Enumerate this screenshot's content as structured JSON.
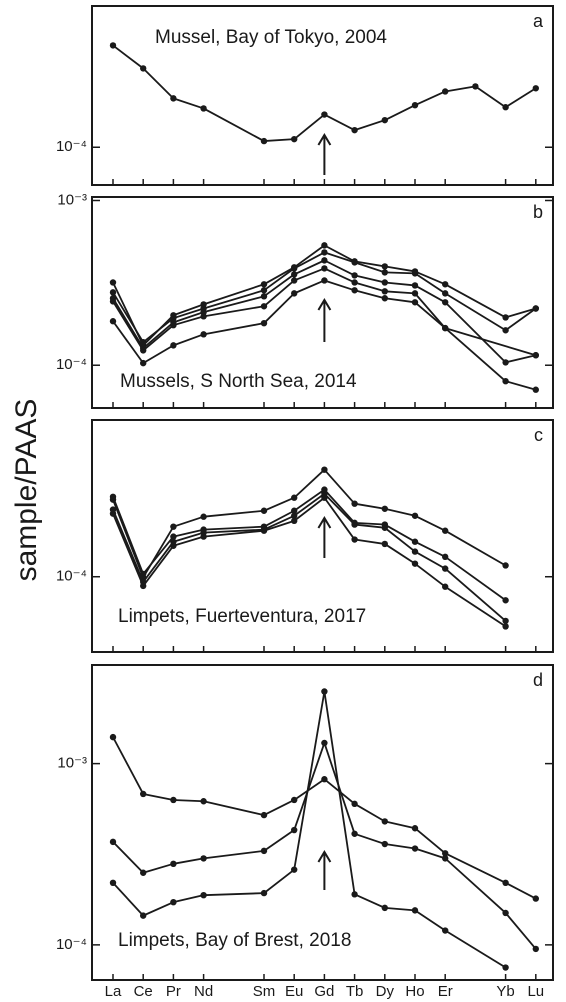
{
  "y_label": "sample/PAAS",
  "categories": [
    "La",
    "Ce",
    "Pr",
    "Nd",
    null,
    "Sm",
    "Eu",
    "Gd",
    "Tb",
    "Dy",
    "Ho",
    "Er",
    null,
    "Yb",
    "Lu"
  ],
  "chart_data": [
    {
      "type": "line",
      "label": "a",
      "title": "Mussel, Bay of Tokyo, 2004",
      "log_y": true,
      "color": "#1a1a1a",
      "ylim": [
        5.9e-05,
        0.00072
      ],
      "yticks": [
        {
          "value": 0.0001,
          "label": "10⁻⁴"
        }
      ],
      "series": [
        {
          "values": [
            0.000415,
            0.000301,
            0.000198,
            0.000172,
            null,
            0.000109,
            0.000112,
            0.000158,
            0.000127,
            0.000146,
            0.00018,
            0.000218,
            0.000234,
            0.000175,
            0.000228
          ]
        }
      ]
    },
    {
      "type": "line",
      "label": "b",
      "title": "Mussels, S North Sea, 2014",
      "log_y": true,
      "color": "#1a1a1a",
      "ylim": [
        5.5e-05,
        0.00105
      ],
      "yticks": [
        {
          "value": 0.0001,
          "label": "10⁻⁴"
        },
        {
          "value": 0.001,
          "label": "10⁻³"
        }
      ],
      "series": [
        {
          "values": [
            0.000318,
            0.000132,
            0.000201,
            0.000234,
            null,
            0.00031,
            0.000393,
            0.000534,
            0.000427,
            0.000398,
            0.000371,
            0.00031,
            null,
            0.000195,
            0.000221
          ]
        },
        {
          "values": [
            0.000277,
            0.000138,
            0.000193,
            0.000221,
            null,
            0.000285,
            0.000387,
            0.000484,
            0.000421,
            0.000366,
            0.000361,
            0.000273,
            null,
            0.000163,
            0.000221
          ]
        },
        {
          "values": [
            0.000255,
            0.000127,
            0.000182,
            0.00021,
            null,
            0.000262,
            0.000356,
            0.000433,
            0.000351,
            0.000318,
            0.000305,
            0.000241,
            null,
            0.000104,
            0.000115
          ]
        },
        {
          "values": [
            0.000244,
            0.000123,
            0.000175,
            0.000198,
            null,
            0.000228,
            0.000327,
            0.000387,
            0.000318,
            0.000281,
            0.000273,
            0.000168,
            null,
            null,
            0.000115
          ]
        },
        {
          "values": [
            0.000185,
            0.000103,
            0.000132,
            0.000154,
            null,
            0.00018,
            0.000273,
            0.000327,
            0.000285,
            0.000255,
            0.000241,
            0.000168,
            null,
            8e-05,
            7.1e-05
          ]
        }
      ]
    },
    {
      "type": "line",
      "label": "c",
      "title": "Limpets, Fuerteventura, 2017",
      "log_y": true,
      "color": "#1a1a1a",
      "ylim": [
        3.5e-05,
        0.00089
      ],
      "yticks": [
        {
          "value": 0.0001,
          "label": "10⁻⁴"
        }
      ],
      "series": [
        {
          "values": [
            0.000293,
            9.9e-05,
            0.000201,
            0.000231,
            null,
            0.000251,
            0.000301,
            0.000445,
            0.000277,
            0.000258,
            0.000234,
            0.00019,
            null,
            0.000117,
            null
          ]
        },
        {
          "values": [
            0.000305,
            0.000104,
            0.000175,
            0.000193,
            null,
            0.000201,
            0.000251,
            0.000337,
            0.000212,
            0.000207,
            0.000163,
            0.000132,
            null,
            7.2e-05,
            null
          ]
        },
        {
          "values": [
            0.000255,
            9.3e-05,
            0.000163,
            0.000185,
            null,
            0.000193,
            0.000234,
            0.000318,
            0.000207,
            0.000198,
            0.000142,
            0.000112,
            null,
            5.4e-05,
            null
          ]
        },
        {
          "values": [
            0.000241,
            8.8e-05,
            0.000154,
            0.000175,
            null,
            0.00019,
            0.000218,
            0.000301,
            0.000168,
            0.000158,
            0.00012,
            8.7e-05,
            null,
            5e-05,
            null
          ]
        }
      ]
    },
    {
      "type": "line",
      "label": "d",
      "title": "Limpets, Bay of Brest, 2018",
      "log_y": true,
      "color": "#1a1a1a",
      "ylim": [
        6.4e-05,
        0.0035
      ],
      "yticks": [
        {
          "value": 0.0001,
          "label": "10⁻⁴"
        },
        {
          "value": 0.001,
          "label": "10⁻³"
        }
      ],
      "series": [
        {
          "values": [
            0.0014,
            0.00068,
            0.00063,
            0.00062,
            null,
            0.00052,
            0.00063,
            0.00082,
            0.0006,
            0.00048,
            0.00044,
            0.00032,
            null,
            0.00022,
            0.00018
          ]
        },
        {
          "values": [
            0.00037,
            0.00025,
            0.00028,
            0.0003,
            null,
            0.00033,
            0.00043,
            0.0013,
            0.00041,
            0.00036,
            0.00034,
            0.0003,
            null,
            0.00015,
            9.5e-05
          ]
        },
        {
          "values": [
            0.00022,
            0.000145,
            0.000172,
            0.000188,
            null,
            0.000193,
            0.00026,
            0.0025,
            0.00019,
            0.00016,
            0.000155,
            0.00012,
            null,
            7.5e-05,
            null
          ]
        }
      ]
    }
  ]
}
